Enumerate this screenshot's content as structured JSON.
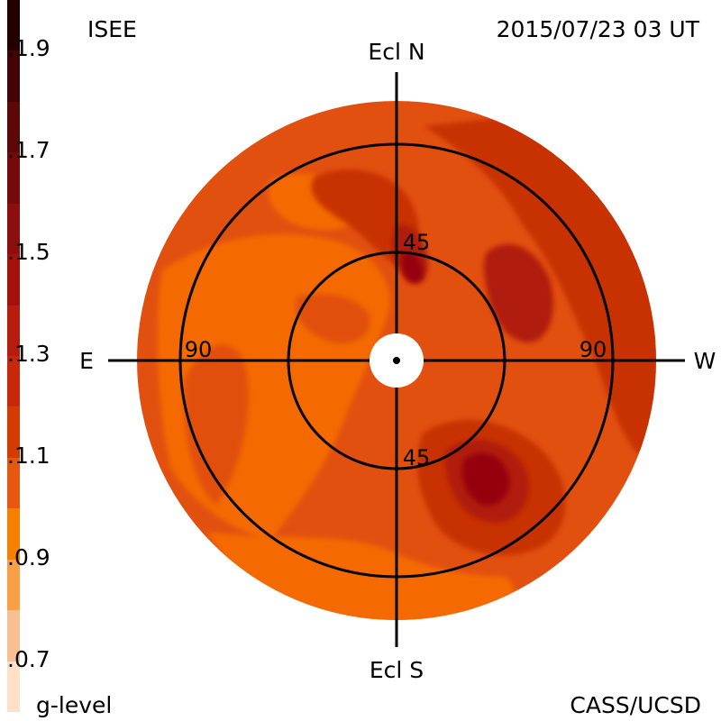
{
  "header": {
    "left": "ISEE",
    "right": "2015/07/23 03 UT"
  },
  "footer": {
    "left": "g-level",
    "right": "CASS/UCSD"
  },
  "map": {
    "directions": {
      "north": "Ecl N",
      "south": "Ecl S",
      "east": "E",
      "west": "W"
    },
    "ring_labels": {
      "inner_top": "45",
      "inner_bottom": "45",
      "outer_left": "90",
      "outer_right": "90"
    },
    "colors": {
      "base": "#e25010",
      "light": "#f46a00",
      "dark": "#c83200",
      "darker": "#b01a08",
      "darkest": "#96000e",
      "center_hole": "#ffffff"
    }
  },
  "colorbar": {
    "label": "g-level",
    "range": [
      0.6,
      2.0
    ],
    "ticks": [
      {
        "value": 1.9,
        "label": "1.9"
      },
      {
        "value": 1.7,
        "label": "1.7"
      },
      {
        "value": 1.5,
        "label": "1.5"
      },
      {
        "value": 1.3,
        "label": "1.3"
      },
      {
        "value": 1.1,
        "label": "1.1"
      },
      {
        "value": 0.9,
        "label": "0.9"
      },
      {
        "value": 0.7,
        "label": "0.7"
      }
    ],
    "bands": [
      {
        "from": 0.6,
        "to": 0.7,
        "color": "#fce0c8"
      },
      {
        "from": 0.7,
        "to": 0.8,
        "color": "#f7c092"
      },
      {
        "from": 0.8,
        "to": 0.9,
        "color": "#f7a046"
      },
      {
        "from": 0.9,
        "to": 1.0,
        "color": "#f68000"
      },
      {
        "from": 1.0,
        "to": 1.1,
        "color": "#e65712"
      },
      {
        "from": 1.1,
        "to": 1.2,
        "color": "#d23c00"
      },
      {
        "from": 1.2,
        "to": 1.3,
        "color": "#c8280a"
      },
      {
        "from": 1.3,
        "to": 1.4,
        "color": "#b61d0e"
      },
      {
        "from": 1.4,
        "to": 1.5,
        "color": "#a2120a"
      },
      {
        "from": 1.5,
        "to": 1.6,
        "color": "#8c0e0e"
      },
      {
        "from": 1.6,
        "to": 1.7,
        "color": "#740a0a"
      },
      {
        "from": 1.7,
        "to": 1.8,
        "color": "#5c0808"
      },
      {
        "from": 1.8,
        "to": 1.9,
        "color": "#420404"
      },
      {
        "from": 1.9,
        "to": 2.0,
        "color": "#220000"
      }
    ]
  }
}
